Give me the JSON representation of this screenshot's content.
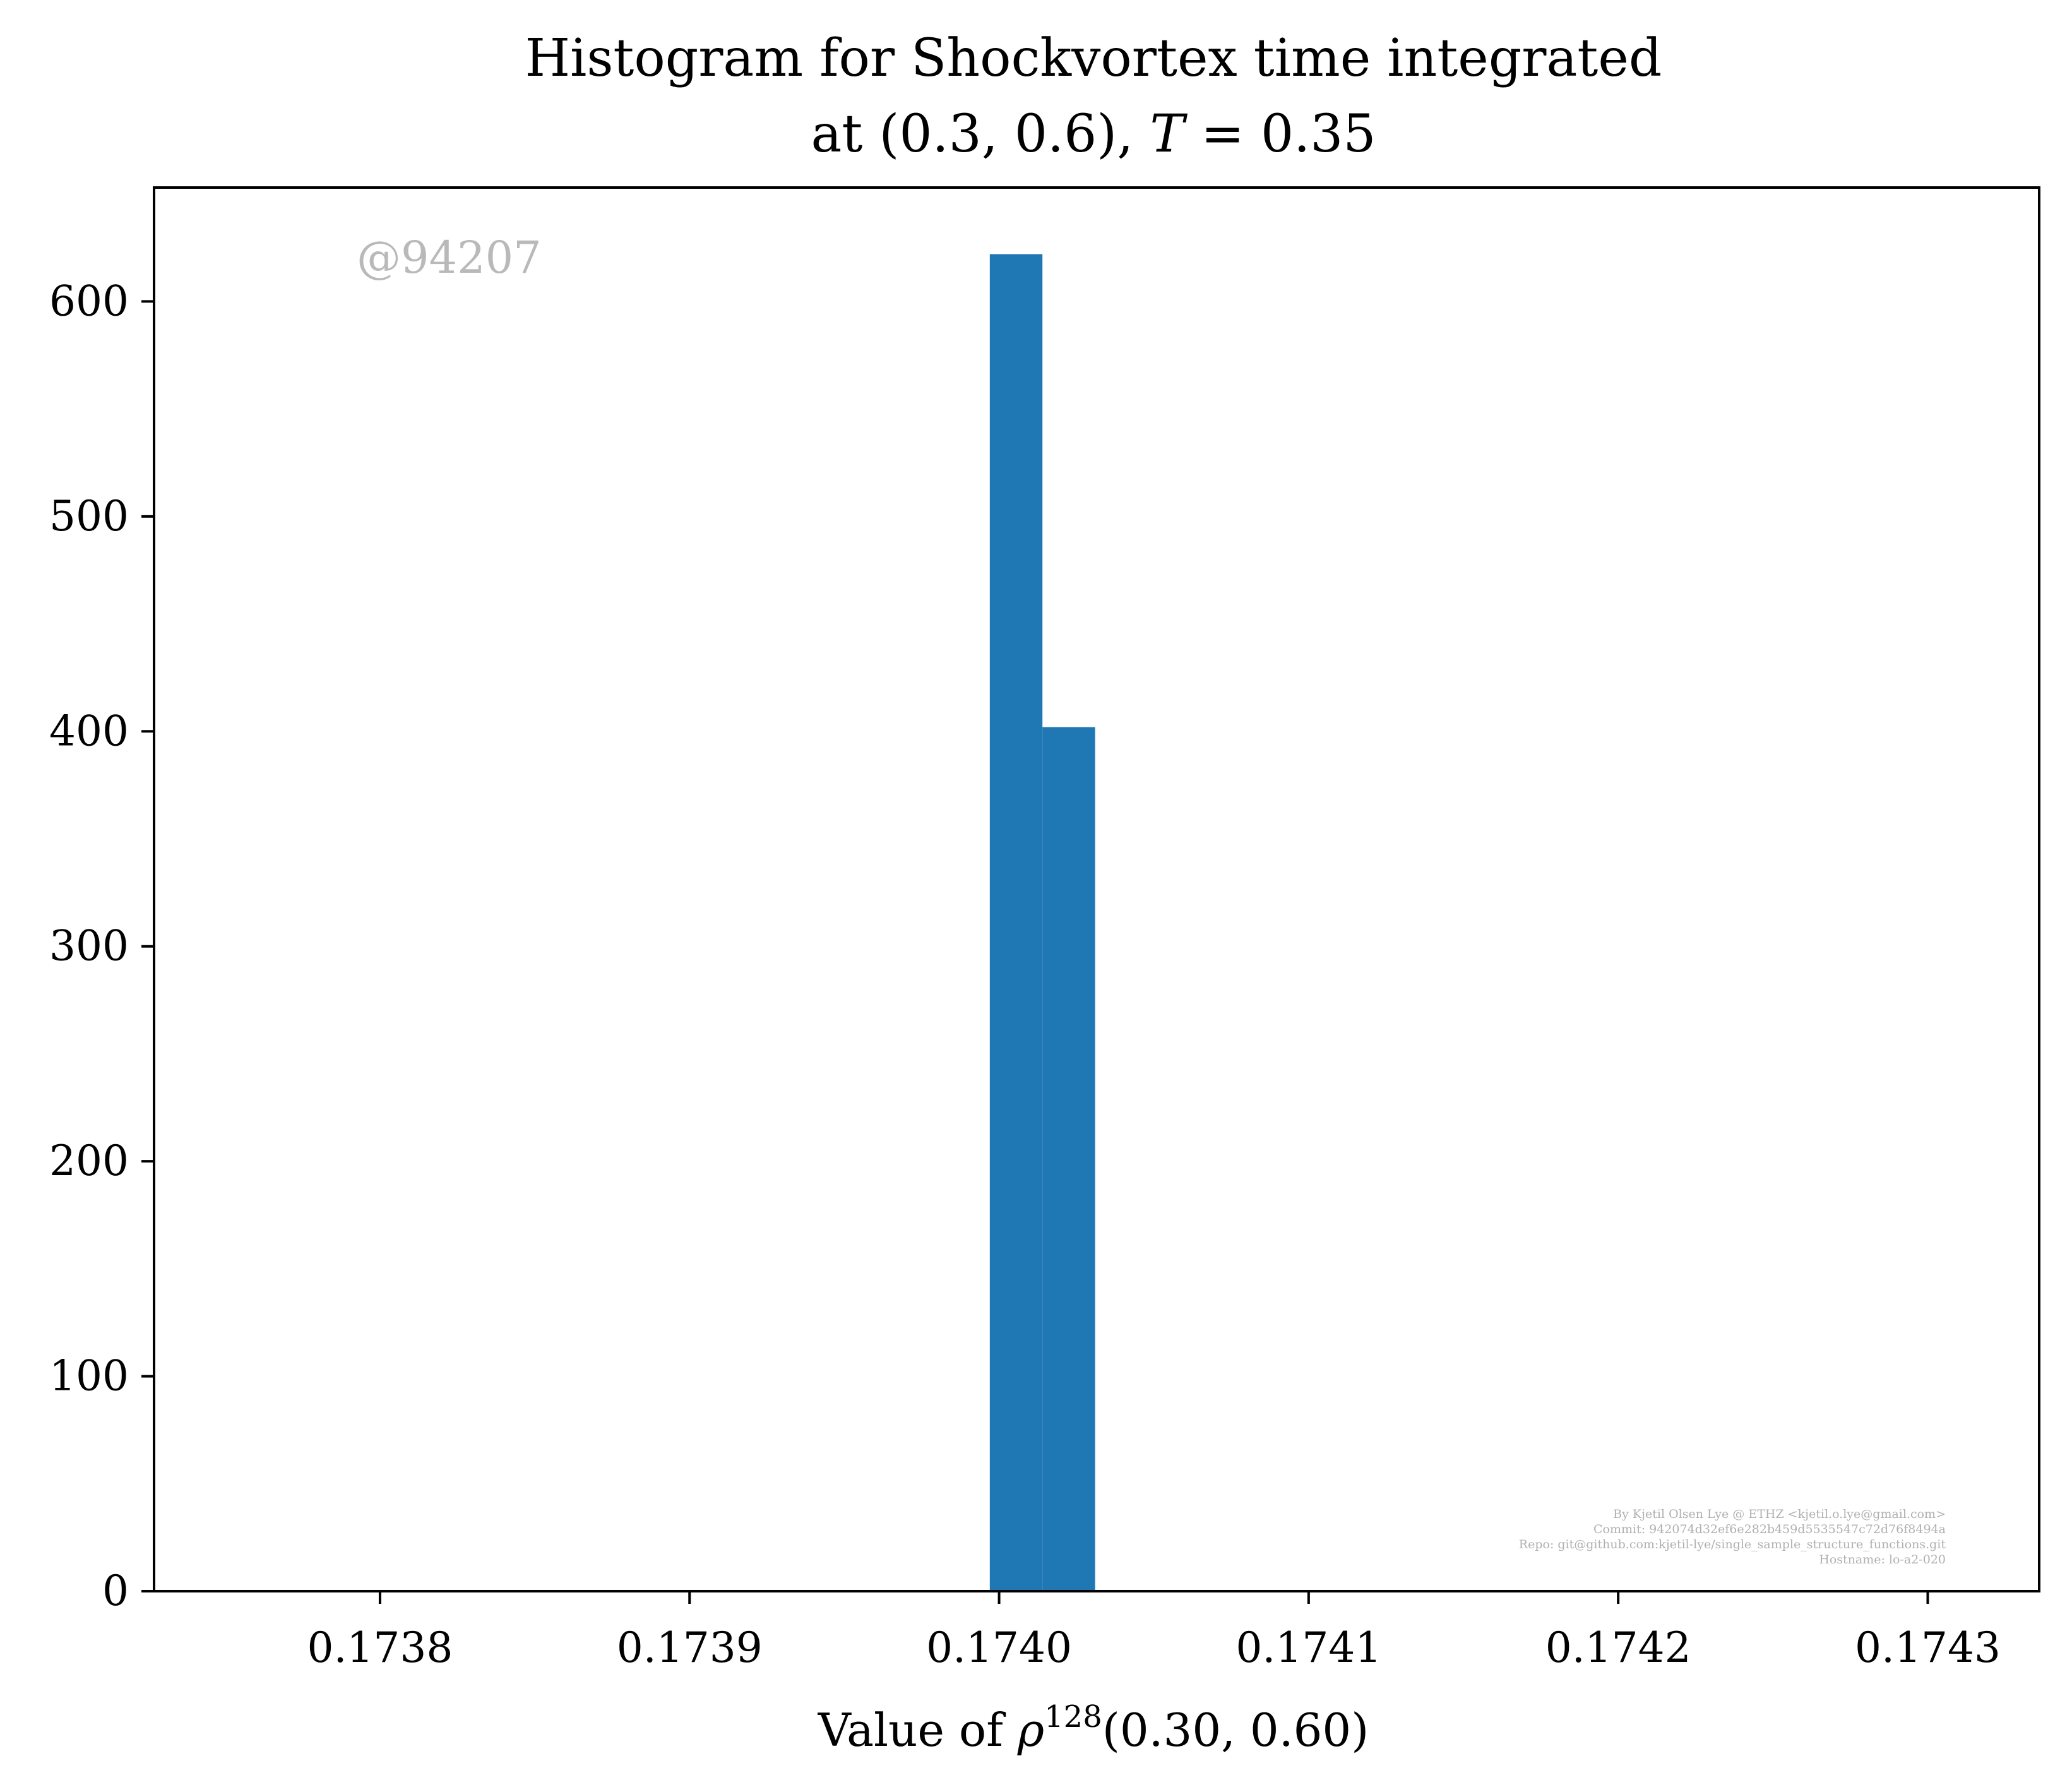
{
  "chart_data": {
    "type": "bar",
    "title_line1": "Histogram for Shockvortex time integrated",
    "title_line2_prefix": "at (0.3, 0.6), ",
    "title_line2_var": "T",
    "title_line2_suffix": " = 0.35",
    "xlabel_prefix": "Value of ",
    "xlabel_var": "ρ",
    "xlabel_sup": "128",
    "xlabel_suffix": "(0.30, 0.60)",
    "xlim": [
      0.173727,
      0.174336
    ],
    "ylim": [
      0,
      653
    ],
    "xticks": [
      0.1738,
      0.1739,
      0.174,
      0.1741,
      0.1742,
      0.1743
    ],
    "xtick_labels": [
      "0.1738",
      "0.1739",
      "0.1740",
      "0.1741",
      "0.1742",
      "0.1743"
    ],
    "yticks": [
      0,
      100,
      200,
      300,
      400,
      500,
      600
    ],
    "ytick_labels": [
      "0",
      "100",
      "200",
      "300",
      "400",
      "500",
      "600"
    ],
    "bins": [
      {
        "x0": 0.173997,
        "x1": 0.174014,
        "count": 622
      },
      {
        "x0": 0.174014,
        "x1": 0.174031,
        "count": 402
      }
    ],
    "bar_color": "#1f77b4",
    "grid": false,
    "legend": "none"
  },
  "watermark": "@94207",
  "credits": [
    "By Kjetil Olsen Lye @ ETHZ <kjetil.o.lye@gmail.com>",
    "Commit: 942074d32ef6e282b459d5535547c72d76f8494a",
    "Repo: git@github.com:kjetil-lye/single_sample_structure_functions.git",
    "Hostname: lo-a2-020"
  ]
}
